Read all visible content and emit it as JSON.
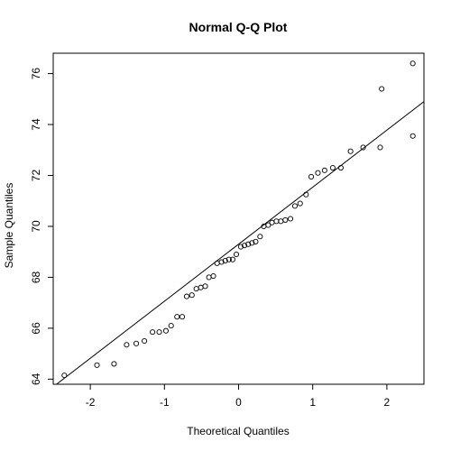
{
  "chart_data": {
    "type": "scatter",
    "title": "Normal Q-Q Plot",
    "xlabel": "Theoretical Quantiles",
    "ylabel": "Sample Quantiles",
    "xlim": [
      -2.5,
      2.5
    ],
    "ylim": [
      63.8,
      76.8
    ],
    "x_ticks": [
      -2,
      -1,
      0,
      1,
      2
    ],
    "x_tick_labels": [
      "-2",
      "-1",
      "0",
      "1",
      "2"
    ],
    "y_ticks": [
      64,
      66,
      68,
      70,
      72,
      74,
      76
    ],
    "y_tick_labels": [
      "64",
      "66",
      "68",
      "70",
      "72",
      "74",
      "76"
    ],
    "grid": false,
    "colors": {
      "points": "#000000",
      "line": "#000000",
      "frame": "#000000"
    },
    "reference_line": {
      "points": [
        [
          -2.5,
          63.7
        ],
        [
          2.5,
          74.9
        ]
      ]
    },
    "series": [
      {
        "points": [
          [
            -2.35,
            64.15
          ],
          [
            -1.91,
            64.55
          ],
          [
            -1.68,
            64.6
          ],
          [
            -1.51,
            65.35
          ],
          [
            -1.38,
            65.4
          ],
          [
            -1.27,
            65.5
          ],
          [
            -1.16,
            65.85
          ],
          [
            -1.07,
            65.85
          ],
          [
            -0.98,
            65.9
          ],
          [
            -0.91,
            66.1
          ],
          [
            -0.83,
            66.45
          ],
          [
            -0.76,
            66.45
          ],
          [
            -0.7,
            67.25
          ],
          [
            -0.63,
            67.3
          ],
          [
            -0.57,
            67.55
          ],
          [
            -0.51,
            67.6
          ],
          [
            -0.45,
            67.65
          ],
          [
            -0.4,
            68.0
          ],
          [
            -0.34,
            68.05
          ],
          [
            -0.29,
            68.55
          ],
          [
            -0.23,
            68.6
          ],
          [
            -0.18,
            68.65
          ],
          [
            -0.13,
            68.7
          ],
          [
            -0.08,
            68.7
          ],
          [
            -0.03,
            68.9
          ],
          [
            0.03,
            69.2
          ],
          [
            0.08,
            69.25
          ],
          [
            0.13,
            69.3
          ],
          [
            0.18,
            69.35
          ],
          [
            0.23,
            69.4
          ],
          [
            0.29,
            69.6
          ],
          [
            0.34,
            70.0
          ],
          [
            0.4,
            70.05
          ],
          [
            0.45,
            70.15
          ],
          [
            0.51,
            70.2
          ],
          [
            0.57,
            70.2
          ],
          [
            0.63,
            70.25
          ],
          [
            0.7,
            70.3
          ],
          [
            0.76,
            70.8
          ],
          [
            0.83,
            70.9
          ],
          [
            0.91,
            71.25
          ],
          [
            0.98,
            71.95
          ],
          [
            1.07,
            72.1
          ],
          [
            1.16,
            72.2
          ],
          [
            1.27,
            72.3
          ],
          [
            1.38,
            72.3
          ],
          [
            1.51,
            72.95
          ],
          [
            1.68,
            73.1
          ],
          [
            1.91,
            73.1
          ],
          [
            2.35,
            73.55
          ]
        ]
      }
    ],
    "extra_points": [
      [
        1.93,
        75.4
      ],
      [
        2.35,
        76.4
      ]
    ]
  }
}
